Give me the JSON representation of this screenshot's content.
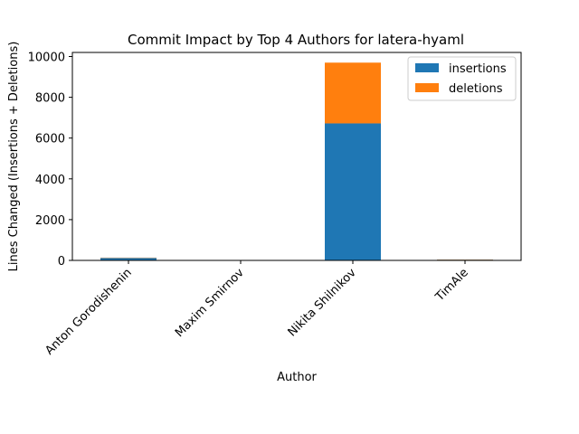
{
  "chart_data": {
    "type": "bar",
    "stacked": true,
    "title": "Commit Impact by Top 4 Authors for latera-hyaml",
    "xlabel": "Author",
    "ylabel": "Lines Changed (Insertions + Deletions)",
    "categories": [
      "Anton Gorodishenin",
      "Maxim Smirnov",
      "Nikita Shilnikov",
      "TimAle"
    ],
    "series": [
      {
        "name": "insertions",
        "color": "#1f77b4",
        "values": [
          120,
          10,
          6720,
          35
        ]
      },
      {
        "name": "deletions",
        "color": "#ff7f0e",
        "values": [
          15,
          2,
          2980,
          10
        ]
      }
    ],
    "ylim": [
      0,
      10200
    ],
    "yticks": [
      0,
      2000,
      4000,
      6000,
      8000,
      10000
    ],
    "legend_position": "top-right",
    "grid": false
  }
}
